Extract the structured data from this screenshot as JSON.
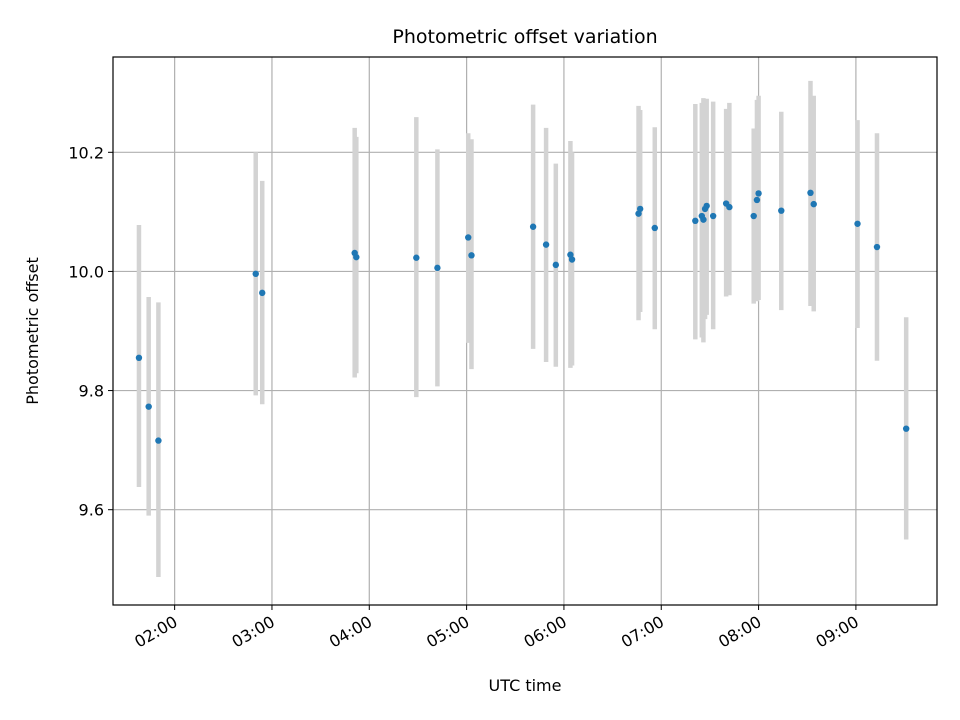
{
  "chart_data": {
    "type": "scatter",
    "title": "Photometric offset variation",
    "xlabel": "UTC time",
    "ylabel": "Photometric offset",
    "x_ticks": [
      "02:00",
      "03:00",
      "04:00",
      "05:00",
      "06:00",
      "07:00",
      "08:00",
      "09:00"
    ],
    "y_ticks": [
      "9.6",
      "9.8",
      "10.0",
      "10.2"
    ],
    "xlim": [
      "01:22",
      "09:50"
    ],
    "ylim": [
      9.44,
      10.36
    ],
    "grid": true,
    "point_color": "#1f77b4",
    "errorbar_color": "#d3d3d3",
    "points": [
      {
        "x": "01:38",
        "y": 9.855,
        "yerr_low": 9.638,
        "yerr_high": 10.078
      },
      {
        "x": "01:44",
        "y": 9.773,
        "yerr_low": 9.59,
        "yerr_high": 9.957
      },
      {
        "x": "01:50",
        "y": 9.716,
        "yerr_low": 9.487,
        "yerr_high": 9.948
      },
      {
        "x": "02:50",
        "y": 9.996,
        "yerr_low": 9.792,
        "yerr_high": 10.2
      },
      {
        "x": "02:54",
        "y": 9.964,
        "yerr_low": 9.777,
        "yerr_high": 10.152
      },
      {
        "x": "03:51",
        "y": 10.031,
        "yerr_low": 9.822,
        "yerr_high": 10.241
      },
      {
        "x": "03:52",
        "y": 10.024,
        "yerr_low": 9.829,
        "yerr_high": 10.226
      },
      {
        "x": "04:29",
        "y": 10.023,
        "yerr_low": 9.789,
        "yerr_high": 10.259
      },
      {
        "x": "04:42",
        "y": 10.006,
        "yerr_low": 9.807,
        "yerr_high": 10.205
      },
      {
        "x": "05:01",
        "y": 10.057,
        "yerr_low": 9.88,
        "yerr_high": 10.232
      },
      {
        "x": "05:03",
        "y": 10.027,
        "yerr_low": 9.836,
        "yerr_high": 10.222
      },
      {
        "x": "05:41",
        "y": 10.075,
        "yerr_low": 9.87,
        "yerr_high": 10.28
      },
      {
        "x": "05:49",
        "y": 10.045,
        "yerr_low": 9.848,
        "yerr_high": 10.241
      },
      {
        "x": "05:55",
        "y": 10.011,
        "yerr_low": 9.84,
        "yerr_high": 10.181
      },
      {
        "x": "06:04",
        "y": 10.028,
        "yerr_low": 9.838,
        "yerr_high": 10.219
      },
      {
        "x": "06:05",
        "y": 10.02,
        "yerr_low": 9.842,
        "yerr_high": 10.2
      },
      {
        "x": "06:46",
        "y": 10.097,
        "yerr_low": 9.918,
        "yerr_high": 10.278
      },
      {
        "x": "06:47",
        "y": 10.105,
        "yerr_low": 9.932,
        "yerr_high": 10.271
      },
      {
        "x": "06:56",
        "y": 10.073,
        "yerr_low": 9.903,
        "yerr_high": 10.242
      },
      {
        "x": "07:21",
        "y": 10.085,
        "yerr_low": 9.886,
        "yerr_high": 10.281
      },
      {
        "x": "07:25",
        "y": 10.093,
        "yerr_low": 9.889,
        "yerr_high": 10.283
      },
      {
        "x": "07:26",
        "y": 10.087,
        "yerr_low": 9.881,
        "yerr_high": 10.291
      },
      {
        "x": "07:27",
        "y": 10.105,
        "yerr_low": 9.92,
        "yerr_high": 10.289
      },
      {
        "x": "07:28",
        "y": 10.11,
        "yerr_low": 9.927,
        "yerr_high": 10.29
      },
      {
        "x": "07:32",
        "y": 10.093,
        "yerr_low": 9.903,
        "yerr_high": 10.285
      },
      {
        "x": "07:40",
        "y": 10.114,
        "yerr_low": 9.958,
        "yerr_high": 10.273
      },
      {
        "x": "07:42",
        "y": 10.108,
        "yerr_low": 9.96,
        "yerr_high": 10.283
      },
      {
        "x": "07:57",
        "y": 10.093,
        "yerr_low": 9.946,
        "yerr_high": 10.24
      },
      {
        "x": "07:59",
        "y": 10.12,
        "yerr_low": 9.95,
        "yerr_high": 10.288
      },
      {
        "x": "08:00",
        "y": 10.131,
        "yerr_low": 9.952,
        "yerr_high": 10.295
      },
      {
        "x": "08:14",
        "y": 10.102,
        "yerr_low": 9.935,
        "yerr_high": 10.268
      },
      {
        "x": "08:32",
        "y": 10.132,
        "yerr_low": 9.942,
        "yerr_high": 10.32
      },
      {
        "x": "08:34",
        "y": 10.113,
        "yerr_low": 9.933,
        "yerr_high": 10.295
      },
      {
        "x": "09:01",
        "y": 10.08,
        "yerr_low": 9.905,
        "yerr_high": 10.254
      },
      {
        "x": "09:13",
        "y": 10.041,
        "yerr_low": 9.85,
        "yerr_high": 10.232
      },
      {
        "x": "09:31",
        "y": 9.736,
        "yerr_low": 9.55,
        "yerr_high": 9.923
      }
    ]
  }
}
